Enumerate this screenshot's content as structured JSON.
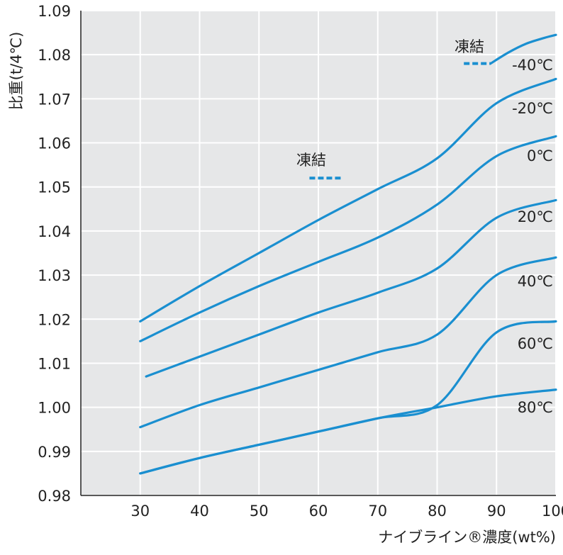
{
  "chart_data": {
    "type": "line",
    "title": "",
    "xlabel": "ナイブライン®濃度(wt%)",
    "ylabel": "比重(t/4℃)",
    "xlim": [
      20,
      100
    ],
    "ylim": [
      0.98,
      1.09
    ],
    "xticks": [
      "30",
      "40",
      "50",
      "60",
      "70",
      "80",
      "90",
      "100"
    ],
    "yticks": [
      "0.98",
      "0.99",
      "1.00",
      "1.01",
      "1.02",
      "1.03",
      "1.04",
      "1.05",
      "1.06",
      "1.07",
      "1.08",
      "1.09"
    ],
    "grid": true,
    "plot_background": "#e6e7e8",
    "grid_color": "#ffffff",
    "line_color": "#1a8fd0",
    "series": [
      {
        "name": "-40℃",
        "x": [
          89,
          92,
          95,
          98,
          100
        ],
        "y": [
          1.078,
          1.0805,
          1.0825,
          1.0838,
          1.0845
        ]
      },
      {
        "name": "-20℃",
        "x": [
          30,
          40,
          50,
          60,
          70,
          80,
          90,
          100
        ],
        "y": [
          1.0195,
          1.0275,
          1.035,
          1.0425,
          1.0495,
          1.0565,
          1.069,
          1.0745
        ]
      },
      {
        "name": "0℃",
        "x": [
          30,
          40,
          50,
          60,
          70,
          80,
          90,
          100
        ],
        "y": [
          1.015,
          1.0215,
          1.0275,
          1.033,
          1.0385,
          1.046,
          1.057,
          1.0615
        ]
      },
      {
        "name": "20℃",
        "x": [
          31,
          40,
          50,
          60,
          70,
          80,
          90,
          100
        ],
        "y": [
          1.007,
          1.0115,
          1.0165,
          1.0215,
          1.026,
          1.0315,
          1.043,
          1.047
        ]
      },
      {
        "name": "40℃",
        "x": [
          30,
          40,
          50,
          60,
          70,
          80,
          90,
          100
        ],
        "y": [
          0.9955,
          1.0005,
          1.0045,
          1.0085,
          1.0125,
          1.0165,
          1.03,
          1.034
        ]
      },
      {
        "name": "60℃",
        "x": [
          30,
          40,
          50,
          60,
          70,
          80,
          90,
          100
        ],
        "y": [
          0.985,
          0.9885,
          0.9915,
          0.9945,
          0.9975,
          1.0005,
          1.017,
          1.0195
        ]
      },
      {
        "name": "80℃",
        "x": [
          30,
          40,
          50,
          60,
          70,
          80,
          90,
          100
        ],
        "y": [
          0.985,
          0.9885,
          0.9915,
          0.9945,
          0.9975,
          1.0,
          1.0025,
          1.004
        ]
      }
    ],
    "frozen_segments": [
      {
        "label": "凍結",
        "x": [
          58.5,
          64
        ],
        "y": 1.052
      },
      {
        "label": "凍結",
        "x": [
          84.5,
          89
        ],
        "y": 1.078
      }
    ]
  }
}
